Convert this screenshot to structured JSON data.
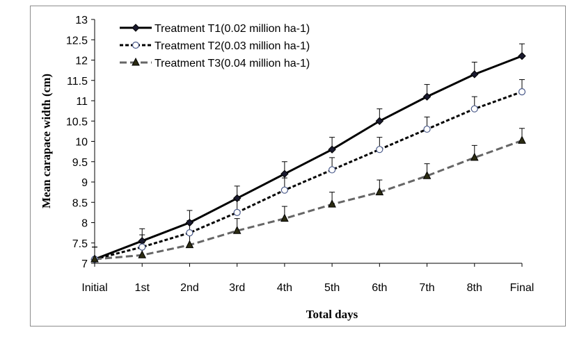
{
  "chart_data": {
    "type": "line",
    "title": "",
    "xlabel": "Total days",
    "ylabel": "Mean carapace width (cm)",
    "categories": [
      "Initial",
      "1st",
      "2nd",
      "3rd",
      "4th",
      "5th",
      "6th",
      "7th",
      "8th",
      "Final"
    ],
    "ylim": [
      7,
      13
    ],
    "yticks": [
      "7",
      "7.5",
      "8",
      "8.5",
      "9",
      "9.5",
      "10",
      "10.5",
      "11",
      "11.5",
      "12",
      "12.5",
      "13"
    ],
    "grid": false,
    "legend_position": "top-left",
    "series": [
      {
        "name": "Treatment T1(0.02 million ha-1)",
        "values": [
          7.1,
          7.55,
          8.0,
          8.6,
          9.2,
          9.8,
          10.5,
          11.1,
          11.65,
          12.1
        ],
        "error": [
          0.3,
          0.3,
          0.3,
          0.3,
          0.3,
          0.3,
          0.3,
          0.3,
          0.3,
          0.3
        ],
        "color": "#000000",
        "line": "solid",
        "marker": "diamond"
      },
      {
        "name": "Treatment T2(0.03 million ha-1)",
        "values": [
          7.1,
          7.4,
          7.75,
          8.25,
          8.8,
          9.3,
          9.8,
          10.3,
          10.8,
          11.22
        ],
        "error": [
          0.3,
          0.3,
          0.3,
          0.3,
          0.3,
          0.3,
          0.3,
          0.3,
          0.3,
          0.3
        ],
        "color": "#000000",
        "line": "dotted",
        "marker": "open-circle"
      },
      {
        "name": "Treatment T3(0.04 million ha-1)",
        "values": [
          7.1,
          7.2,
          7.45,
          7.8,
          8.1,
          8.45,
          8.75,
          9.15,
          9.6,
          10.02
        ],
        "error": [
          0.3,
          0.3,
          0.3,
          0.3,
          0.3,
          0.3,
          0.3,
          0.3,
          0.3,
          0.3
        ],
        "color": "#666666",
        "line": "dashed",
        "marker": "triangle"
      }
    ]
  }
}
